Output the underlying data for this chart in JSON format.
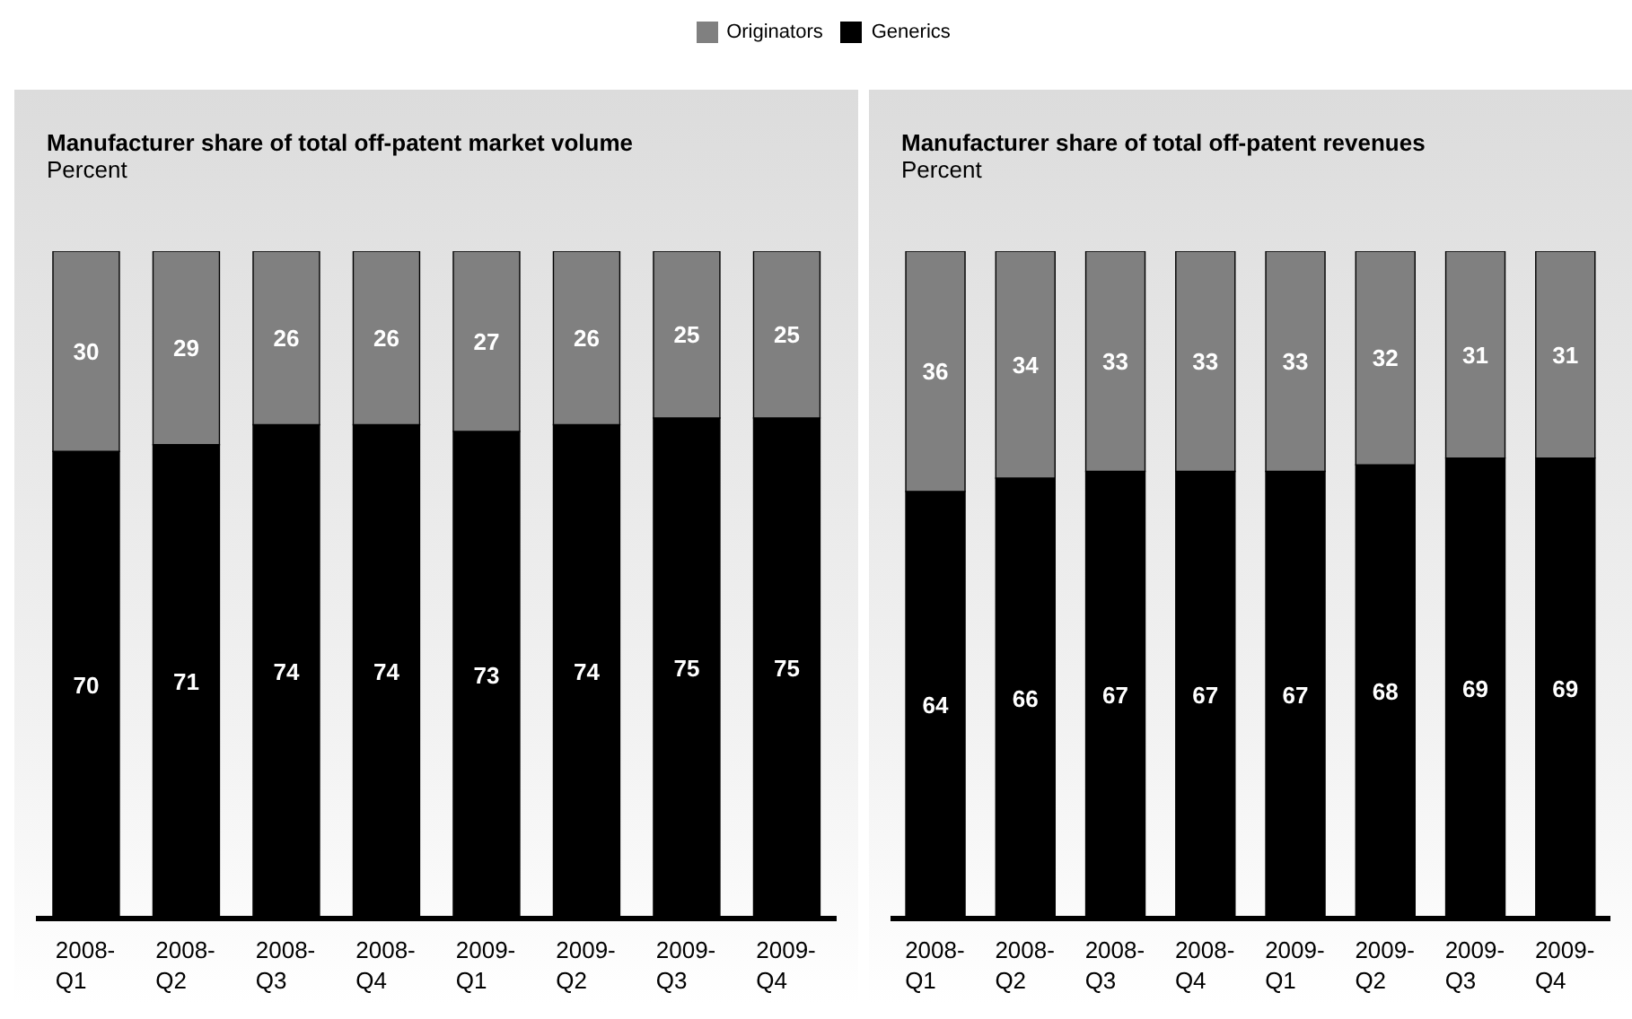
{
  "chart_data": [
    {
      "type": "bar",
      "title": "Manufacturer share of total off-patent market volume",
      "subtitle": "Percent",
      "stacked": true,
      "data_labels": true,
      "legend": "top",
      "categories": [
        "2008-Q1",
        "2008-Q2",
        "2008-Q3",
        "2008-Q4",
        "2009-Q1",
        "2009-Q2",
        "2009-Q3",
        "2009-Q4"
      ],
      "series": [
        {
          "name": "Generics",
          "color": "#000000",
          "values": [
            70,
            71,
            74,
            74,
            73,
            74,
            75,
            75
          ]
        },
        {
          "name": "Originators",
          "color": "#808080",
          "values": [
            30,
            29,
            26,
            26,
            27,
            26,
            25,
            25
          ]
        }
      ]
    },
    {
      "type": "bar",
      "title": "Manufacturer share of total off-patent revenues",
      "subtitle": "Percent",
      "stacked": true,
      "data_labels": true,
      "categories": [
        "2008-Q1",
        "2008-Q2",
        "2008-Q3",
        "2008-Q4",
        "2009-Q1",
        "2009-Q2",
        "2009-Q3",
        "2009-Q4"
      ],
      "series": [
        {
          "color": "#000000",
          "values": [
            64,
            66,
            67,
            67,
            67,
            68,
            69,
            69
          ]
        },
        {
          "color": "#808080",
          "values": [
            36,
            34,
            33,
            33,
            33,
            32,
            31,
            31
          ]
        }
      ]
    }
  ]
}
